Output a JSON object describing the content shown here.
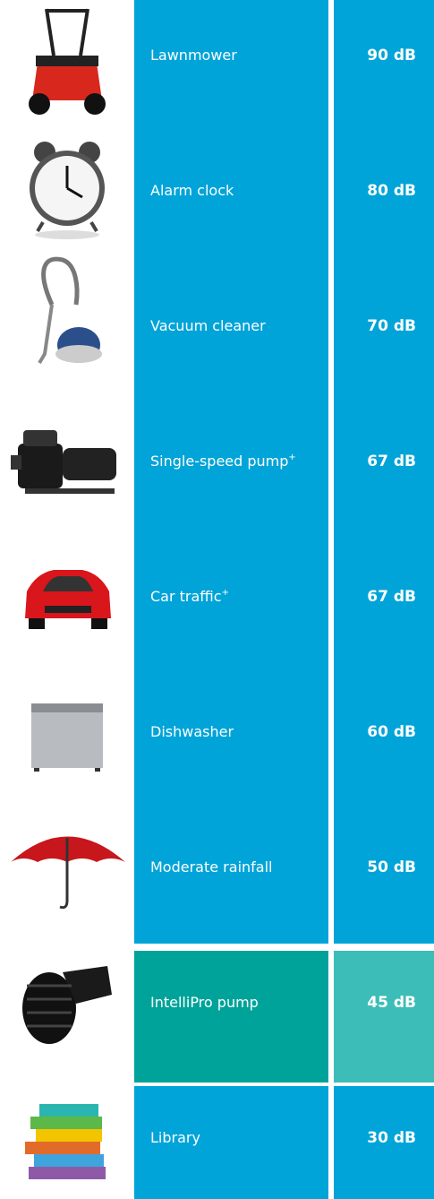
{
  "rows": [
    {
      "label": "Lawnmower",
      "value": "90 dB"
    },
    {
      "label": "Alarm clock",
      "value": "80 dB"
    },
    {
      "label": "Vacuum cleaner",
      "value": "70 dB"
    },
    {
      "label": "Single-speed pump",
      "mark": "+",
      "value": "67 dB"
    },
    {
      "label": "Car traffic",
      "mark": "+",
      "value": "67 dB"
    },
    {
      "label": "Dishwasher",
      "value": "60 dB"
    },
    {
      "label": "Moderate rainfall",
      "value": "50 dB"
    },
    {
      "label": "IntelliPro pump",
      "value": "45 dB",
      "highlight": true
    },
    {
      "label": "Library",
      "value": "30 dB"
    }
  ]
}
